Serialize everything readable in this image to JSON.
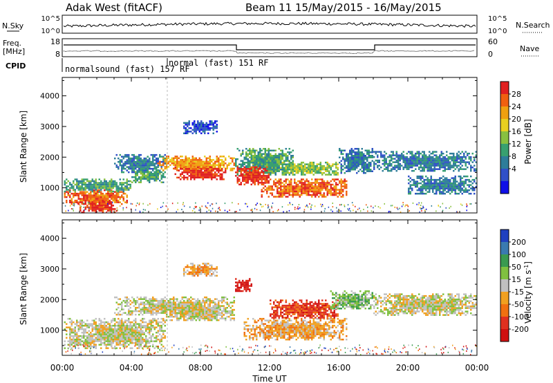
{
  "header": {
    "station": "Adak West (fitACF)",
    "beam_info": "Beam 11 15/May/2015 - 16/May/2015"
  },
  "panels": {
    "nsky": {
      "label": "N.Sky",
      "left_ticks": [
        "10^5",
        "10^0"
      ],
      "right_ticks": [
        "10^5",
        "10^0"
      ],
      "right_label": "N.Search"
    },
    "freq": {
      "label_line1": "Freq.",
      "label_line2": "[MHz]",
      "left_ticks": [
        "18",
        "8"
      ],
      "right_ticks": [
        "60",
        "0"
      ],
      "right_label": "Nave"
    },
    "cpid": {
      "label": "CPID",
      "mode_1": "normalsound (fast) 157 RF",
      "mode_2": "normal (fast) 151 RF"
    }
  },
  "chart_data": [
    {
      "type": "heatmap",
      "name": "power",
      "ylabel": "Slant Range [km]",
      "yticks": [
        1000,
        2000,
        3000,
        4000
      ],
      "ylim": [
        180,
        4600
      ],
      "colorbar_label": "Power [dB]",
      "colorbar_ticks": [
        28,
        24,
        20,
        16,
        12,
        8,
        4
      ],
      "colors": [
        "#1010e8",
        "#3050c8",
        "#2e7d9a",
        "#38a070",
        "#88c040",
        "#e8d020",
        "#f0a010",
        "#f06010",
        "#e02020"
      ],
      "bands": [
        {
          "t0": 0.1,
          "t1": 3.8,
          "r0": 450,
          "r1": 950,
          "level": 7
        },
        {
          "t0": 0.1,
          "t1": 4.0,
          "r0": 900,
          "r1": 1300,
          "level": 3
        },
        {
          "t0": 1.0,
          "t1": 3.2,
          "r0": 200,
          "r1": 560,
          "level": 8
        },
        {
          "t0": 3.0,
          "t1": 6.0,
          "r0": 1500,
          "r1": 2100,
          "level": 2
        },
        {
          "t0": 4.0,
          "t1": 6.0,
          "r0": 1200,
          "r1": 1600,
          "level": 3
        },
        {
          "t0": 5.5,
          "t1": 10.0,
          "r0": 1550,
          "r1": 2050,
          "level": 6
        },
        {
          "t0": 6.5,
          "t1": 9.5,
          "r0": 1300,
          "r1": 1700,
          "level": 8
        },
        {
          "t0": 7.0,
          "t1": 9.0,
          "r0": 2800,
          "r1": 3200,
          "level": 1
        },
        {
          "t0": 10.0,
          "t1": 13.5,
          "r0": 1400,
          "r1": 2300,
          "level": 3
        },
        {
          "t0": 10.0,
          "t1": 12.0,
          "r0": 1100,
          "r1": 1700,
          "level": 8
        },
        {
          "t0": 12.5,
          "t1": 16.0,
          "r0": 1450,
          "r1": 1850,
          "level": 4
        },
        {
          "t0": 11.5,
          "t1": 16.5,
          "r0": 700,
          "r1": 1300,
          "level": 7
        },
        {
          "t0": 16.0,
          "t1": 18.0,
          "r0": 1500,
          "r1": 2300,
          "level": 2
        },
        {
          "t0": 18.0,
          "t1": 24.0,
          "r0": 1550,
          "r1": 2200,
          "level": 2
        },
        {
          "t0": 20.0,
          "t1": 24.0,
          "r0": 800,
          "r1": 1400,
          "level": 2
        }
      ]
    },
    {
      "type": "heatmap",
      "name": "velocity",
      "ylabel": "Slant Range [km]",
      "xlabel": "Time UT",
      "xticks": [
        "00:00",
        "04:00",
        "08:00",
        "12:00",
        "16:00",
        "20:00",
        "00:00"
      ],
      "xlim": [
        0,
        24
      ],
      "yticks": [
        1000,
        2000,
        3000,
        4000
      ],
      "ylim": [
        180,
        4600
      ],
      "colorbar_label": "Velocity [m s^-1]",
      "colorbar_ticks": [
        200,
        100,
        50,
        15,
        -15,
        -50,
        -100,
        -200
      ],
      "colors": [
        "#2040c0",
        "#3a7ab0",
        "#3a9a50",
        "#80c040",
        "#c0c0c0",
        "#f0a020",
        "#f07010",
        "#e03020",
        "#d01010"
      ],
      "bands": [
        {
          "t0": 0.1,
          "t1": 6.0,
          "r0": 400,
          "r1": 1400,
          "level": 4
        },
        {
          "t0": 3.0,
          "t1": 10.0,
          "r0": 1500,
          "r1": 2100,
          "level": 4
        },
        {
          "t0": 6.0,
          "t1": 10.0,
          "r0": 1300,
          "r1": 1750,
          "level": 4
        },
        {
          "t0": 7.0,
          "t1": 9.0,
          "r0": 2800,
          "r1": 3200,
          "level": 5
        },
        {
          "t0": 10.0,
          "t1": 11.0,
          "r0": 2300,
          "r1": 2700,
          "level": 8
        },
        {
          "t0": 10.5,
          "t1": 16.5,
          "r0": 700,
          "r1": 1400,
          "level": 5
        },
        {
          "t0": 12.0,
          "t1": 16.0,
          "r0": 1400,
          "r1": 2000,
          "level": 7
        },
        {
          "t0": 15.5,
          "t1": 18.0,
          "r0": 1700,
          "r1": 2300,
          "level": 3
        },
        {
          "t0": 18.0,
          "t1": 24.0,
          "r0": 1500,
          "r1": 2200,
          "level": 4
        }
      ]
    }
  ]
}
